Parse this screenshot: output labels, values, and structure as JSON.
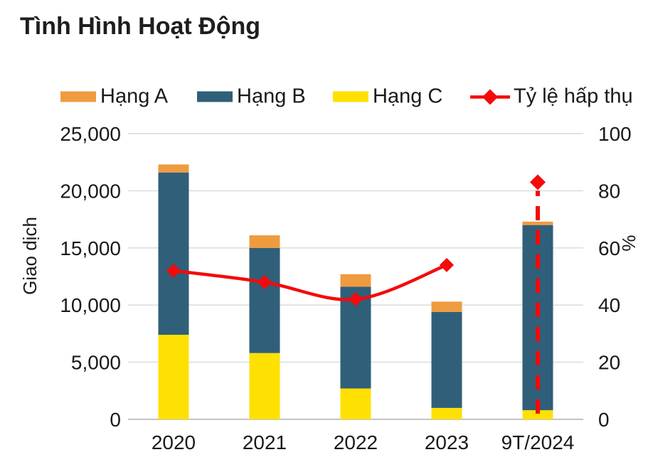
{
  "title": "Tình Hình Hoạt Động",
  "legend": {
    "items": [
      {
        "label": "Hạng A",
        "color": "#EF9B40"
      },
      {
        "label": "Hạng B",
        "color": "#305F7A"
      },
      {
        "label": "Hạng C",
        "color": "#FFE003"
      },
      {
        "label": "Tỷ lệ hấp thụ",
        "color": "#F40A0A"
      }
    ]
  },
  "colors": {
    "background": "#FFFFFF",
    "title_text": "#1E1E1E",
    "axis_text": "#1A1A1A",
    "gridline": "#D9D9D9",
    "baseline": "#C4C4C4"
  },
  "chart_data": {
    "type": "bar",
    "subtype": "stacked-columns-with-line-on-secondary-axis",
    "title": "Tình Hình Hoạt Động",
    "categories": [
      "2020",
      "2021",
      "2022",
      "2023",
      "9T/2024"
    ],
    "series": [
      {
        "name": "Hạng C",
        "role": "bar-stack-bottom",
        "color": "#FFE003",
        "values": [
          7400,
          5800,
          2700,
          1000,
          800
        ]
      },
      {
        "name": "Hạng B",
        "role": "bar-stack-middle",
        "color": "#305F7A",
        "values": [
          14200,
          9200,
          8900,
          8400,
          16200
        ]
      },
      {
        "name": "Hạng A",
        "role": "bar-stack-top",
        "color": "#EF9B40",
        "values": [
          700,
          1100,
          1100,
          900,
          300
        ]
      }
    ],
    "bar_totals": [
      22300,
      16100,
      12700,
      10300,
      17300
    ],
    "line_series": {
      "name": "Tỷ lệ hấp thụ",
      "axis": "right",
      "color": "#F40A0A",
      "values": [
        52,
        48,
        42,
        54,
        83
      ],
      "solid_through_index": 3,
      "dashed_drop_index": 4
    },
    "left_axis": {
      "label": "Giao dịch",
      "min": 0,
      "max": 25000,
      "ticks": [
        0,
        5000,
        10000,
        15000,
        20000,
        25000
      ],
      "tick_labels": [
        "0",
        "5,000",
        "10,000",
        "15,000",
        "20,000",
        "25,000"
      ]
    },
    "right_axis": {
      "label": "%",
      "min": 0,
      "max": 100,
      "ticks": [
        0,
        20,
        40,
        60,
        80,
        100
      ],
      "tick_labels": [
        "0",
        "20",
        "40",
        "60",
        "80",
        "100"
      ]
    },
    "grid": "horizontal-on",
    "legend_position": "top"
  }
}
